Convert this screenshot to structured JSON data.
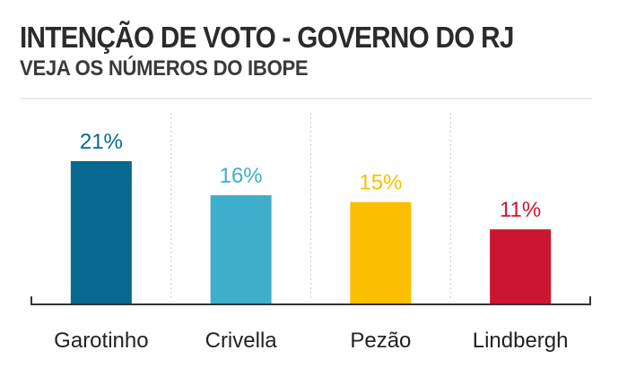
{
  "header": {
    "title": "INTENÇÃO DE VOTO - GOVERNO DO RJ",
    "subtitle": "VEJA OS NÚMEROS DO IBOPE"
  },
  "chart_data": {
    "type": "bar",
    "title": "INTENÇÃO DE VOTO - GOVERNO DO RJ",
    "subtitle": "VEJA OS NÚMEROS DO IBOPE",
    "xlabel": "",
    "ylabel": "",
    "ylim": [
      0,
      21
    ],
    "grid": "vertical dashed separators",
    "legend": "none",
    "categories": [
      "Garotinho",
      "Crivella",
      "Pezão",
      "Lindbergh"
    ],
    "values": [
      21,
      16,
      15,
      11
    ],
    "labels": [
      "21%",
      "16%",
      "15%",
      "11%"
    ],
    "colors": [
      "#086890",
      "#3fadcc",
      "#fbbe00",
      "#cc1530"
    ]
  }
}
